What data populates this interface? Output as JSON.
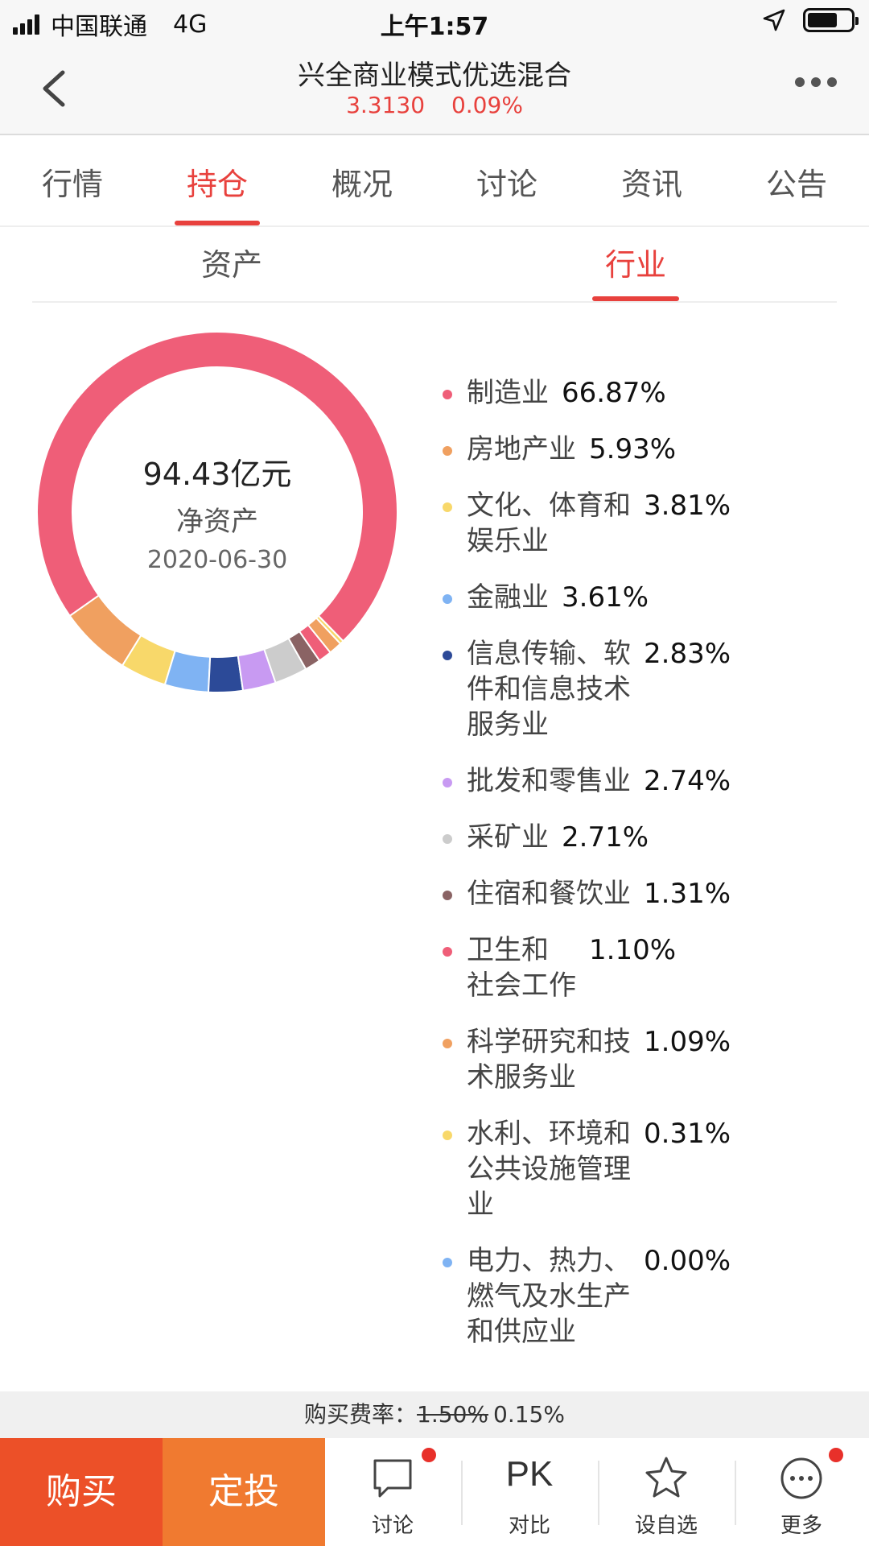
{
  "status_bar": {
    "carrier": "中国联通",
    "network": "4G",
    "time": "上午1:57",
    "battery_level": 0.7
  },
  "nav": {
    "title": "兴全商业模式优选混合",
    "price": "3.3130",
    "change": "0.09%",
    "back_icon": "back-chevron-icon",
    "more_icon": "more-dots-icon"
  },
  "tabs": [
    {
      "label": "行情",
      "active": false
    },
    {
      "label": "持仓",
      "active": true
    },
    {
      "label": "概况",
      "active": false
    },
    {
      "label": "讨论",
      "active": false
    },
    {
      "label": "资讯",
      "active": false
    },
    {
      "label": "公告",
      "active": false
    }
  ],
  "subtabs": [
    {
      "label": "资产",
      "active": false
    },
    {
      "label": "行业",
      "active": true
    }
  ],
  "summary": {
    "amount": "94.43亿元",
    "label": "净资产",
    "date": "2020-06-30"
  },
  "chart_data": {
    "type": "pie",
    "donut": true,
    "categories": [
      "制造业",
      "房地产业",
      "文化、体育和娱乐业",
      "金融业",
      "信息传输、软件和信息技术服务业",
      "批发和零售业",
      "采矿业",
      "住宿和餐饮业",
      "卫生和社会工作",
      "科学研究和技术服务业",
      "水利、环境和公共设施管理业",
      "电力、热力、燃气及水生产和供应业"
    ],
    "values": [
      66.87,
      5.93,
      3.81,
      3.61,
      2.83,
      2.74,
      2.71,
      1.31,
      1.1,
      1.09,
      0.31,
      0.0
    ],
    "colors": [
      "#ef5e78",
      "#f0a060",
      "#f8d86a",
      "#7fb3f3",
      "#2c4a98",
      "#c89af2",
      "#cccccc",
      "#8a6364",
      "#ef5e78",
      "#f0a060",
      "#f8d86a",
      "#7fb3f3"
    ]
  },
  "legend": [
    {
      "name": "制造业",
      "value": "66.87%",
      "name_lines": [
        "制造业"
      ]
    },
    {
      "name": "房地产业",
      "value": "5.93%",
      "name_lines": [
        "房地产业"
      ]
    },
    {
      "name": "文化、体育和娱乐业",
      "value": "3.81%",
      "name_lines": [
        "文化、体育和",
        "娱乐业"
      ]
    },
    {
      "name": "金融业",
      "value": "3.61%",
      "name_lines": [
        "金融业"
      ]
    },
    {
      "name": "信息传输、软件和信息技术服务业",
      "value": "2.83%",
      "name_lines": [
        "信息传输、软",
        "件和信息技术",
        "服务业"
      ]
    },
    {
      "name": "批发和零售业",
      "value": "2.74%",
      "name_lines": [
        "批发和零售业"
      ]
    },
    {
      "name": "采矿业",
      "value": "2.71%",
      "name_lines": [
        "采矿业"
      ]
    },
    {
      "name": "住宿和餐饮业",
      "value": "1.31%",
      "name_lines": [
        "住宿和餐饮业"
      ]
    },
    {
      "name": "卫生和社会工作",
      "value": "1.10%",
      "name_lines": [
        "卫生和",
        "社会工作"
      ]
    },
    {
      "name": "科学研究和技术服务业",
      "value": "1.09%",
      "name_lines": [
        "科学研究和技",
        "术服务业"
      ]
    },
    {
      "name": "水利、环境和公共设施管理业",
      "value": "0.31%",
      "name_lines": [
        "水利、环境和",
        "公共设施管理",
        "业"
      ]
    },
    {
      "name": "电力、热力、燃气及水生产和供应业",
      "value": "0.00%",
      "name_lines": [
        "电力、热力、",
        "燃气及水生产",
        "和供应业"
      ]
    }
  ],
  "fee": {
    "label": "购买费率：",
    "original": "1.50%",
    "current": "0.15%"
  },
  "bottom_bar": {
    "buy_label": "购买",
    "plan_label": "定投",
    "discuss_label": "讨论",
    "pk_text": "PK",
    "compare_label": "对比",
    "watch_label": "设自选",
    "more_label": "更多"
  },
  "colors": {
    "accent": "#e8413d",
    "buy": "#ec5028",
    "plan": "#f07a30"
  }
}
